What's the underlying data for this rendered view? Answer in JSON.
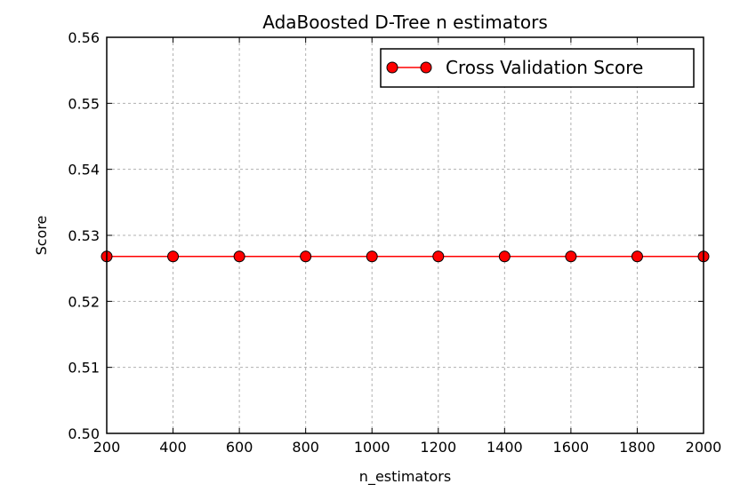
{
  "chart_data": {
    "type": "line",
    "title": "AdaBoosted D-Tree n estimators",
    "xlabel": "n_estimators",
    "ylabel": "Score",
    "xlim": [
      200,
      2000
    ],
    "ylim": [
      0.5,
      0.56
    ],
    "xticks": [
      200,
      400,
      600,
      800,
      1000,
      1200,
      1400,
      1600,
      1800,
      2000
    ],
    "xtick_labels": [
      "200",
      "400",
      "600",
      "800",
      "1000",
      "1200",
      "1400",
      "1600",
      "1800",
      "2000"
    ],
    "yticks": [
      0.5,
      0.51,
      0.52,
      0.53,
      0.54,
      0.55,
      0.56
    ],
    "ytick_labels": [
      "0.50",
      "0.51",
      "0.52",
      "0.53",
      "0.54",
      "0.55",
      "0.56"
    ],
    "grid": true,
    "legend_position": "top-right",
    "series": [
      {
        "name": "Cross Validation Score",
        "color": "#ff0000",
        "marker": "circle",
        "x": [
          200,
          400,
          600,
          800,
          1000,
          1200,
          1400,
          1600,
          1800,
          2000
        ],
        "y": [
          0.5268,
          0.5268,
          0.5268,
          0.5268,
          0.5268,
          0.5268,
          0.5268,
          0.5268,
          0.5268,
          0.5268
        ]
      }
    ]
  }
}
